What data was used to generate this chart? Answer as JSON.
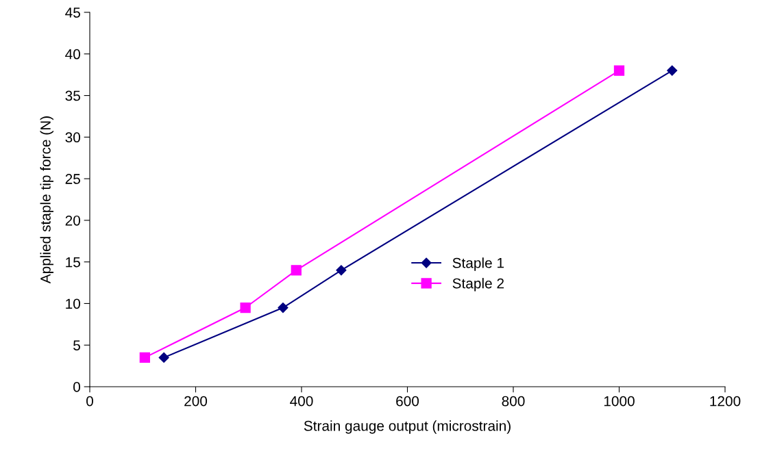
{
  "chart_data": {
    "type": "line",
    "xlabel": "Strain gauge output (microstrain)",
    "ylabel": "Applied staple tip force (N)",
    "series": [
      {
        "name": "Staple 1",
        "color": "#000080",
        "marker": "diamond",
        "x": [
          140,
          365,
          475,
          1100
        ],
        "values": [
          3.5,
          9.5,
          14,
          38
        ]
      },
      {
        "name": "Staple 2",
        "color": "#ff00ff",
        "marker": "square",
        "x": [
          104,
          294,
          390,
          1000
        ],
        "values": [
          3.5,
          9.5,
          14,
          38
        ]
      }
    ],
    "xlim": [
      0,
      1200
    ],
    "xticks": [
      0,
      200,
      400,
      600,
      800,
      1000,
      1200
    ],
    "ylim": [
      0,
      45
    ],
    "yticks": [
      0,
      5,
      10,
      15,
      20,
      25,
      30,
      35,
      40,
      45
    ],
    "grid": false,
    "legend": "center",
    "line_style": "solid"
  }
}
